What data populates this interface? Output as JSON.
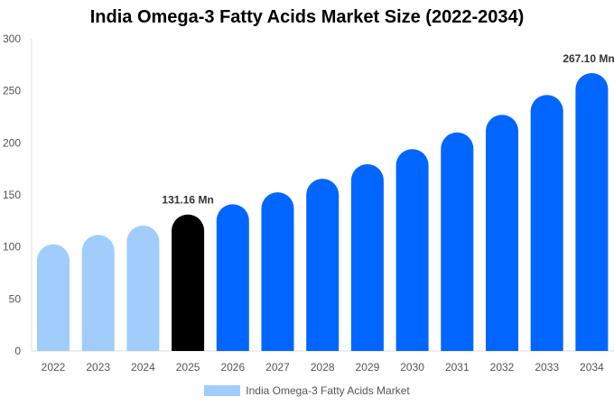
{
  "chart_data": {
    "type": "bar",
    "title": "India Omega-3 Fatty Acids Market Size (2022-2034)",
    "categories": [
      "2022",
      "2023",
      "2024",
      "2025",
      "2026",
      "2027",
      "2028",
      "2029",
      "2030",
      "2031",
      "2032",
      "2033",
      "2034"
    ],
    "series": [
      {
        "name": "India Omega-3 Fatty Acids Market",
        "values": [
          102.5,
          111.5,
          120.5,
          131.16,
          141,
          152.5,
          165.5,
          179.5,
          194,
          210,
          227,
          246,
          267.1
        ]
      }
    ],
    "bar_colors": [
      "#a0cdfc",
      "#a0cdfc",
      "#a0cdfc",
      "#000000",
      "#0066ff",
      "#0066ff",
      "#0066ff",
      "#0066ff",
      "#0066ff",
      "#0066ff",
      "#0066ff",
      "#0066ff",
      "#0066ff"
    ],
    "data_labels": {
      "3": "131.16 Mn",
      "12": "267.10 Mn"
    },
    "yticks": [
      0,
      50,
      100,
      150,
      200,
      250,
      300
    ],
    "ylim": [
      0,
      300
    ],
    "xlabel": "",
    "ylabel": "",
    "grid": false,
    "legend": "bottom",
    "legend_color": "#a0cdfc"
  }
}
